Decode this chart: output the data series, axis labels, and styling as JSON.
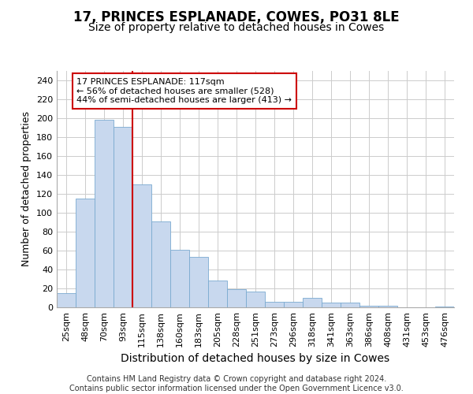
{
  "title1": "17, PRINCES ESPLANADE, COWES, PO31 8LE",
  "title2": "Size of property relative to detached houses in Cowes",
  "xlabel": "Distribution of detached houses by size in Cowes",
  "ylabel": "Number of detached properties",
  "categories": [
    "25sqm",
    "48sqm",
    "70sqm",
    "93sqm",
    "115sqm",
    "138sqm",
    "160sqm",
    "183sqm",
    "205sqm",
    "228sqm",
    "251sqm",
    "273sqm",
    "296sqm",
    "318sqm",
    "341sqm",
    "363sqm",
    "386sqm",
    "408sqm",
    "431sqm",
    "453sqm",
    "476sqm"
  ],
  "values": [
    15,
    115,
    198,
    191,
    130,
    91,
    61,
    53,
    28,
    19,
    17,
    6,
    6,
    10,
    5,
    5,
    2,
    2,
    0,
    0,
    1
  ],
  "bar_color": "#c8d8ee",
  "bar_edge_color": "#7aaad0",
  "vline_color": "#cc0000",
  "vline_x_index": 4,
  "annotation_text_line1": "17 PRINCES ESPLANADE: 117sqm",
  "annotation_text_line2": "← 56% of detached houses are smaller (528)",
  "annotation_text_line3": "44% of semi-detached houses are larger (413) →",
  "box_color": "#cc0000",
  "footnote": "Contains HM Land Registry data © Crown copyright and database right 2024.\nContains public sector information licensed under the Open Government Licence v3.0.",
  "ylim": [
    0,
    250
  ],
  "yticks": [
    0,
    20,
    40,
    60,
    80,
    100,
    120,
    140,
    160,
    180,
    200,
    220,
    240
  ],
  "title1_fontsize": 12,
  "title2_fontsize": 10,
  "xlabel_fontsize": 10,
  "ylabel_fontsize": 9,
  "tick_fontsize": 8,
  "annot_fontsize": 8,
  "footnote_fontsize": 7
}
